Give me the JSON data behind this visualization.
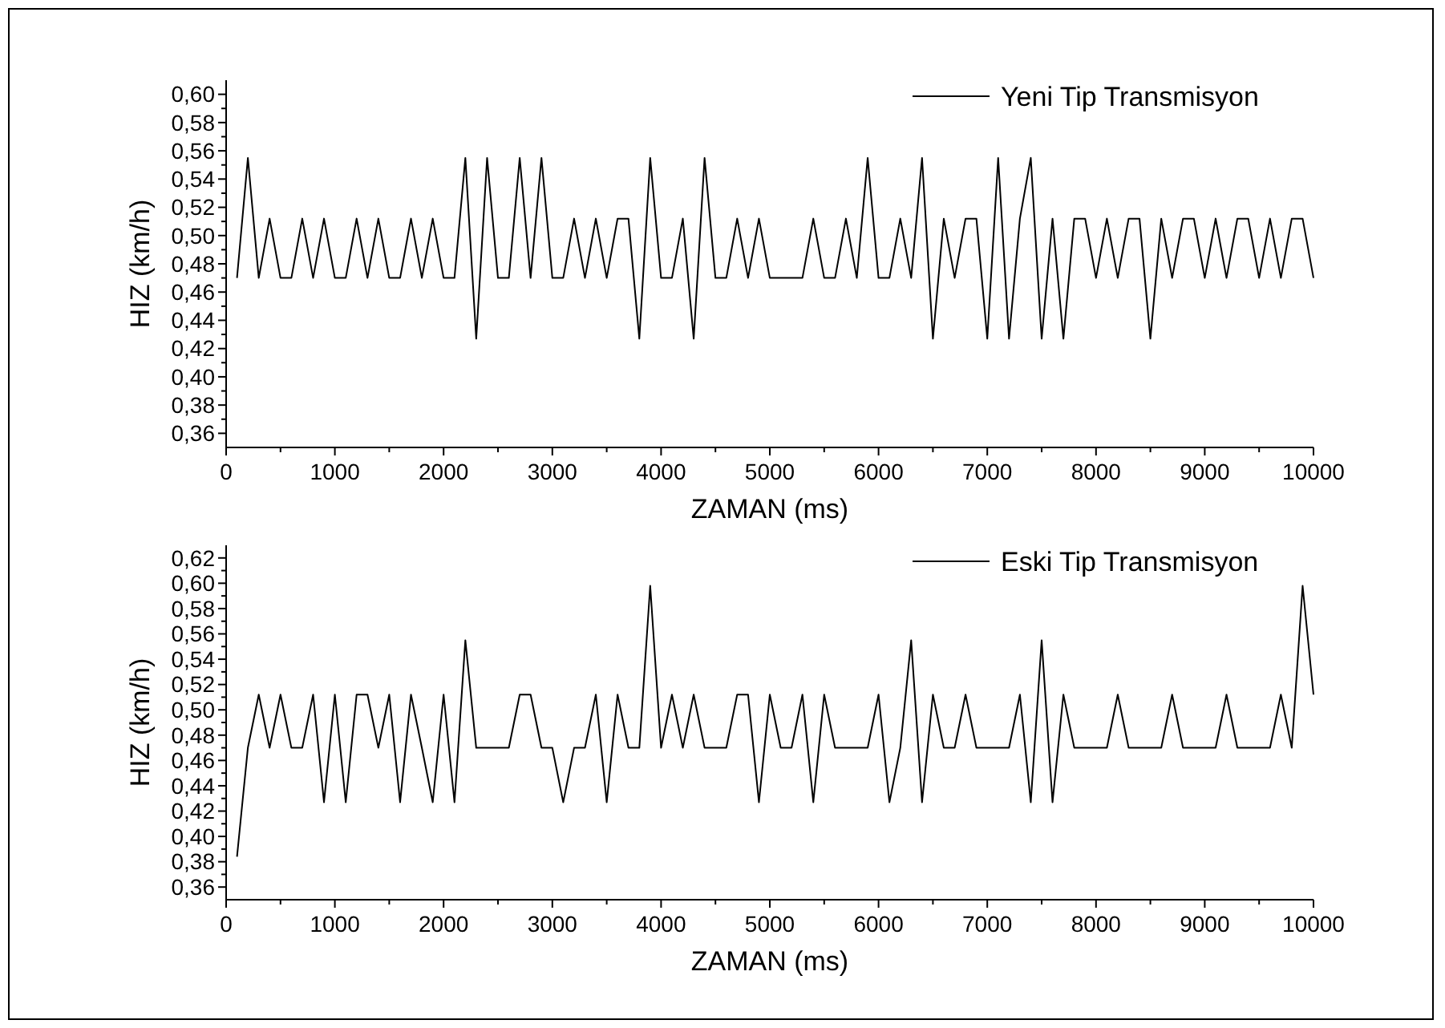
{
  "chart_data": [
    {
      "type": "line",
      "xlabel": "ZAMAN (ms)",
      "ylabel": "HIZ (km/h)",
      "legend": "top right",
      "marker": "none",
      "line_style": "solid",
      "grid": false,
      "x": [
        100,
        200,
        300,
        400,
        500,
        600,
        700,
        800,
        900,
        1000,
        1100,
        1200,
        1300,
        1400,
        1500,
        1600,
        1700,
        1800,
        1900,
        2000,
        2100,
        2200,
        2300,
        2400,
        2500,
        2600,
        2700,
        2800,
        2900,
        3000,
        3100,
        3200,
        3300,
        3400,
        3500,
        3600,
        3700,
        3800,
        3900,
        4000,
        4100,
        4200,
        4300,
        4400,
        4500,
        4600,
        4700,
        4800,
        4900,
        5000,
        5100,
        5200,
        5300,
        5400,
        5500,
        5600,
        5700,
        5800,
        5900,
        6000,
        6100,
        6200,
        6300,
        6400,
        6500,
        6600,
        6700,
        6800,
        6900,
        7000,
        7100,
        7200,
        7300,
        7400,
        7500,
        7600,
        7700,
        7800,
        7900,
        8000,
        8100,
        8200,
        8300,
        8400,
        8500,
        8600,
        8700,
        8800,
        8900,
        9000,
        9100,
        9200,
        9300,
        9400,
        9500,
        9600,
        9700,
        9800,
        9900,
        10000
      ],
      "series": [
        {
          "name": "Yeni Tip Transmisyon",
          "color": "#000000",
          "values": [
            0.47,
            0.555,
            0.47,
            0.512,
            0.47,
            0.47,
            0.512,
            0.47,
            0.512,
            0.47,
            0.47,
            0.512,
            0.47,
            0.512,
            0.47,
            0.47,
            0.512,
            0.47,
            0.512,
            0.47,
            0.47,
            0.555,
            0.427,
            0.555,
            0.47,
            0.47,
            0.555,
            0.47,
            0.555,
            0.47,
            0.47,
            0.512,
            0.47,
            0.512,
            0.47,
            0.512,
            0.512,
            0.427,
            0.555,
            0.47,
            0.47,
            0.512,
            0.427,
            0.555,
            0.47,
            0.47,
            0.512,
            0.47,
            0.512,
            0.47,
            0.47,
            0.47,
            0.47,
            0.512,
            0.47,
            0.47,
            0.512,
            0.47,
            0.555,
            0.47,
            0.47,
            0.512,
            0.47,
            0.555,
            0.427,
            0.512,
            0.47,
            0.512,
            0.512,
            0.427,
            0.555,
            0.427,
            0.512,
            0.555,
            0.427,
            0.512,
            0.427,
            0.512,
            0.512,
            0.47,
            0.512,
            0.47,
            0.512,
            0.512,
            0.427,
            0.512,
            0.47,
            0.512,
            0.512,
            0.47,
            0.512,
            0.47,
            0.512,
            0.512,
            0.47,
            0.512,
            0.47,
            0.512,
            0.512,
            0.47
          ]
        }
      ],
      "xlim": [
        0,
        10000
      ],
      "xticks": [
        0,
        {
          "value": 500,
          "label": null
        },
        1000,
        {
          "value": 1500,
          "label": null
        },
        2000,
        {
          "value": 2500,
          "label": null
        },
        3000,
        {
          "value": 3500,
          "label": null
        },
        4000,
        {
          "value": 4500,
          "label": null
        },
        5000,
        {
          "value": 5500,
          "label": null
        },
        6000,
        {
          "value": 6500,
          "label": null
        },
        7000,
        {
          "value": 7500,
          "label": null
        },
        8000,
        {
          "value": 8500,
          "label": null
        },
        9000,
        {
          "value": 9500,
          "label": null
        },
        10000
      ],
      "ylim": [
        0.35,
        0.61
      ],
      "yticks": [
        {
          "value": 0.36,
          "label": "0,36"
        },
        {
          "value": 0.37,
          "label": null
        },
        {
          "value": 0.38,
          "label": "0,38"
        },
        {
          "value": 0.39,
          "label": null
        },
        {
          "value": 0.4,
          "label": "0,40"
        },
        {
          "value": 0.41,
          "label": null
        },
        {
          "value": 0.42,
          "label": "0,42"
        },
        {
          "value": 0.43,
          "label": null
        },
        {
          "value": 0.44,
          "label": "0,44"
        },
        {
          "value": 0.45,
          "label": null
        },
        {
          "value": 0.46,
          "label": "0,46"
        },
        {
          "value": 0.47,
          "label": null
        },
        {
          "value": 0.48,
          "label": "0,48"
        },
        {
          "value": 0.49,
          "label": null
        },
        {
          "value": 0.5,
          "label": "0,50"
        },
        {
          "value": 0.51,
          "label": null
        },
        {
          "value": 0.52,
          "label": "0,52"
        },
        {
          "value": 0.53,
          "label": null
        },
        {
          "value": 0.54,
          "label": "0,54"
        },
        {
          "value": 0.55,
          "label": null
        },
        {
          "value": 0.56,
          "label": "0,56"
        },
        {
          "value": 0.57,
          "label": null
        },
        {
          "value": 0.58,
          "label": "0,58"
        },
        {
          "value": 0.59,
          "label": null
        },
        {
          "value": 0.6,
          "label": "0,60"
        }
      ]
    },
    {
      "type": "line",
      "xlabel": "ZAMAN (ms)",
      "ylabel": "HIZ (km/h)",
      "legend": "top right",
      "marker": "none",
      "line_style": "solid",
      "grid": false,
      "x": [
        100,
        200,
        300,
        400,
        500,
        600,
        700,
        800,
        900,
        1000,
        1100,
        1200,
        1300,
        1400,
        1500,
        1600,
        1700,
        1800,
        1900,
        2000,
        2100,
        2200,
        2300,
        2400,
        2500,
        2600,
        2700,
        2800,
        2900,
        3000,
        3100,
        3200,
        3300,
        3400,
        3500,
        3600,
        3700,
        3800,
        3900,
        4000,
        4100,
        4200,
        4300,
        4400,
        4500,
        4600,
        4700,
        4800,
        4900,
        5000,
        5100,
        5200,
        5300,
        5400,
        5500,
        5600,
        5700,
        5800,
        5900,
        6000,
        6100,
        6200,
        6300,
        6400,
        6500,
        6600,
        6700,
        6800,
        6900,
        7000,
        7100,
        7200,
        7300,
        7400,
        7500,
        7600,
        7700,
        7800,
        7900,
        8000,
        8100,
        8200,
        8300,
        8400,
        8500,
        8600,
        8700,
        8800,
        8900,
        9000,
        9100,
        9200,
        9300,
        9400,
        9500,
        9600,
        9700,
        9800,
        9900,
        10000
      ],
      "series": [
        {
          "name": "Eski Tip Transmisyon",
          "color": "#000000",
          "values": [
            0.384,
            0.47,
            0.512,
            0.47,
            0.512,
            0.47,
            0.47,
            0.512,
            0.427,
            0.512,
            0.427,
            0.512,
            0.512,
            0.47,
            0.512,
            0.427,
            0.512,
            0.47,
            0.427,
            0.512,
            0.427,
            0.555,
            0.47,
            0.47,
            0.47,
            0.47,
            0.512,
            0.512,
            0.47,
            0.47,
            0.427,
            0.47,
            0.47,
            0.512,
            0.427,
            0.512,
            0.47,
            0.47,
            0.598,
            0.47,
            0.512,
            0.47,
            0.512,
            0.47,
            0.47,
            0.47,
            0.512,
            0.512,
            0.427,
            0.512,
            0.47,
            0.47,
            0.512,
            0.427,
            0.512,
            0.47,
            0.47,
            0.47,
            0.47,
            0.512,
            0.427,
            0.47,
            0.555,
            0.427,
            0.512,
            0.47,
            0.47,
            0.512,
            0.47,
            0.47,
            0.47,
            0.47,
            0.512,
            0.427,
            0.555,
            0.427,
            0.512,
            0.47,
            0.47,
            0.47,
            0.47,
            0.512,
            0.47,
            0.47,
            0.47,
            0.47,
            0.512,
            0.47,
            0.47,
            0.47,
            0.47,
            0.512,
            0.47,
            0.47,
            0.47,
            0.47,
            0.512,
            0.47,
            0.598,
            0.512
          ]
        }
      ],
      "xlim": [
        0,
        10000
      ],
      "xticks": [
        0,
        {
          "value": 500,
          "label": null
        },
        1000,
        {
          "value": 1500,
          "label": null
        },
        2000,
        {
          "value": 2500,
          "label": null
        },
        3000,
        {
          "value": 3500,
          "label": null
        },
        4000,
        {
          "value": 4500,
          "label": null
        },
        5000,
        {
          "value": 5500,
          "label": null
        },
        6000,
        {
          "value": 6500,
          "label": null
        },
        7000,
        {
          "value": 7500,
          "label": null
        },
        8000,
        {
          "value": 8500,
          "label": null
        },
        9000,
        {
          "value": 9500,
          "label": null
        },
        10000
      ],
      "ylim": [
        0.35,
        0.63
      ],
      "yticks": [
        {
          "value": 0.36,
          "label": "0,36"
        },
        {
          "value": 0.37,
          "label": null
        },
        {
          "value": 0.38,
          "label": "0,38"
        },
        {
          "value": 0.39,
          "label": null
        },
        {
          "value": 0.4,
          "label": "0,40"
        },
        {
          "value": 0.41,
          "label": null
        },
        {
          "value": 0.42,
          "label": "0,42"
        },
        {
          "value": 0.43,
          "label": null
        },
        {
          "value": 0.44,
          "label": "0,44"
        },
        {
          "value": 0.45,
          "label": null
        },
        {
          "value": 0.46,
          "label": "0,46"
        },
        {
          "value": 0.47,
          "label": null
        },
        {
          "value": 0.48,
          "label": "0,48"
        },
        {
          "value": 0.49,
          "label": null
        },
        {
          "value": 0.5,
          "label": "0,50"
        },
        {
          "value": 0.51,
          "label": null
        },
        {
          "value": 0.52,
          "label": "0,52"
        },
        {
          "value": 0.53,
          "label": null
        },
        {
          "value": 0.54,
          "label": "0,54"
        },
        {
          "value": 0.55,
          "label": null
        },
        {
          "value": 0.56,
          "label": "0,56"
        },
        {
          "value": 0.57,
          "label": null
        },
        {
          "value": 0.58,
          "label": "0,58"
        },
        {
          "value": 0.59,
          "label": null
        },
        {
          "value": 0.6,
          "label": "0,60"
        },
        {
          "value": 0.61,
          "label": null
        },
        {
          "value": 0.62,
          "label": "0,62"
        }
      ]
    }
  ]
}
